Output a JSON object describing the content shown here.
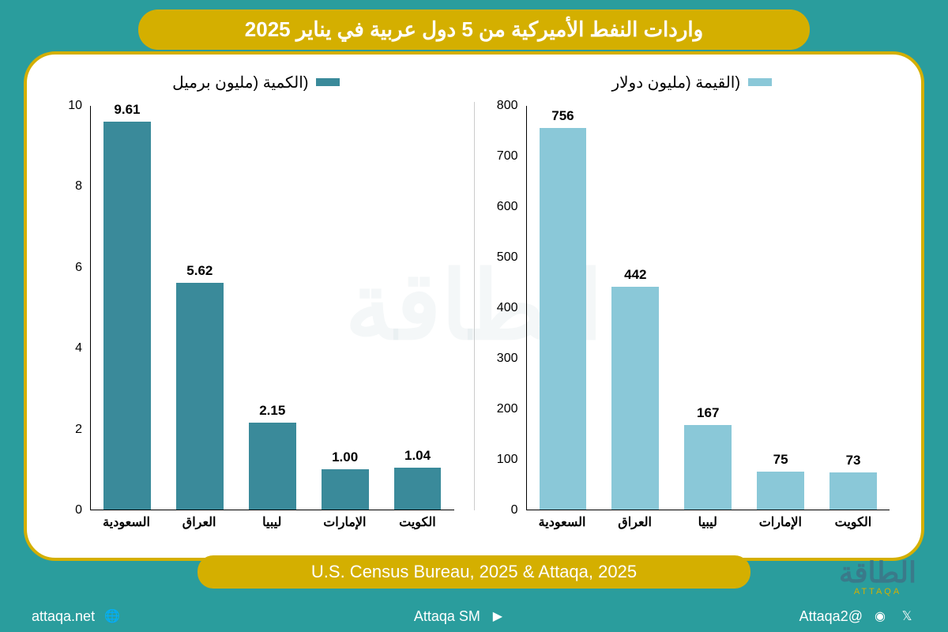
{
  "title": "واردات النفط الأميركية من 5 دول عربية في يناير 2025",
  "source": "U.S. Census Bureau, 2025 & Attaqa, 2025",
  "logo": {
    "main": "الطاقة",
    "sub": "ATTAQA"
  },
  "social": {
    "handle1": "@Attaqa2",
    "handle2": "Attaqa SM",
    "website": "attaqa.net"
  },
  "chart_right": {
    "legend": "(الكمية (مليون برميل",
    "legend_color": "#3a8a9a",
    "bar_color": "#3a8a9a",
    "ylim": [
      0,
      10
    ],
    "yticks": [
      0,
      2,
      4,
      6,
      8,
      10
    ],
    "categories": [
      "السعودية",
      "العراق",
      "ليبيا",
      "الإمارات",
      "الكويت"
    ],
    "values": [
      9.61,
      5.62,
      2.15,
      1.0,
      1.04
    ],
    "value_labels": [
      "9.61",
      "5.62",
      "2.15",
      "1.00",
      "1.04"
    ],
    "bar_width_pct": 13
  },
  "chart_left": {
    "legend": "(القيمة (مليون دولار",
    "legend_color": "#8ac8d8",
    "bar_color": "#8ac8d8",
    "ylim": [
      0,
      800
    ],
    "yticks": [
      0,
      100,
      200,
      300,
      400,
      500,
      600,
      700,
      800
    ],
    "categories": [
      "السعودية",
      "العراق",
      "ليبيا",
      "الإمارات",
      "الكويت"
    ],
    "values": [
      756,
      442,
      167,
      75,
      73
    ],
    "value_labels": [
      "756",
      "442",
      "167",
      "75",
      "73"
    ],
    "bar_width_pct": 13
  }
}
